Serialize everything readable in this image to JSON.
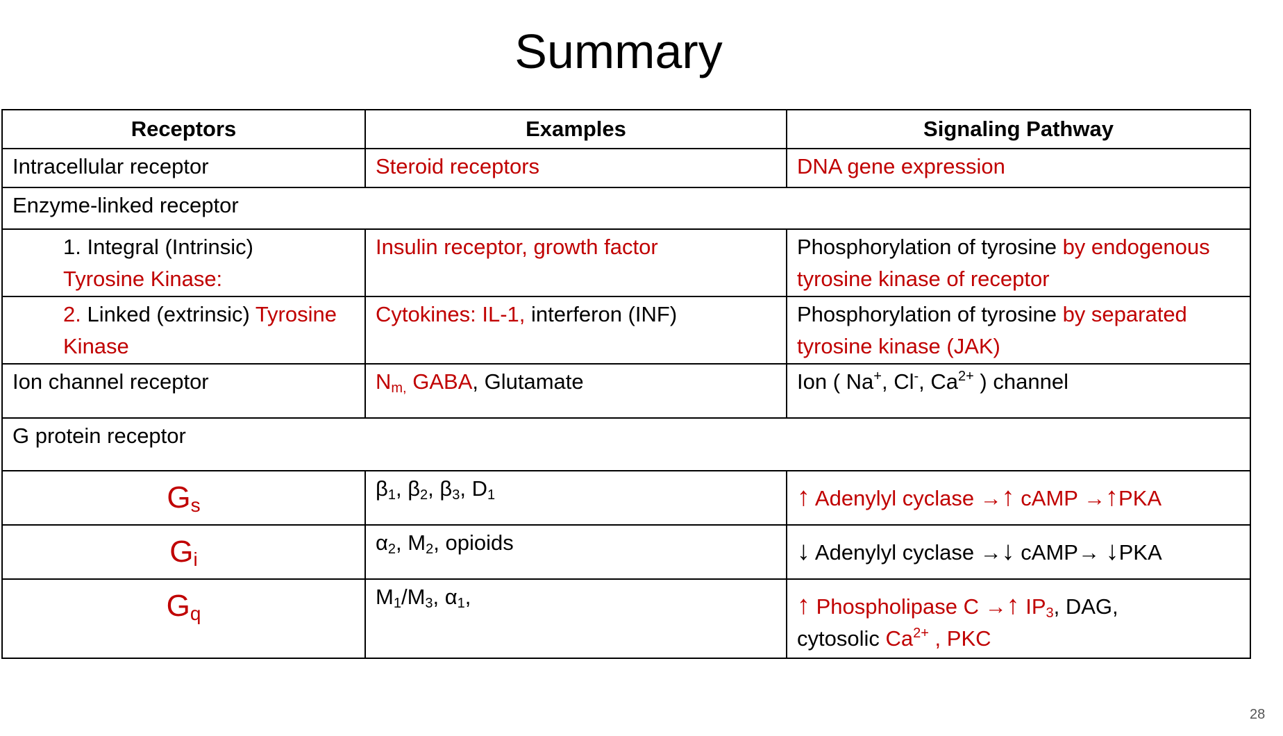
{
  "title": "Summary",
  "page_number": "28",
  "colors": {
    "accent_red": "#c00000",
    "text": "#000000",
    "border": "#000000"
  },
  "headers": {
    "receptors": "Receptors",
    "examples": "Examples",
    "pathway": "Signaling Pathway"
  },
  "rows": {
    "intracellular": {
      "receptor": "Intracellular receptor",
      "examples": "Steroid receptors",
      "pathway": "DNA gene expression"
    },
    "enzyme": {
      "label": "Enzyme-linked receptor"
    },
    "integral": {
      "receptor_a": "1. Integral (Intrinsic)",
      "receptor_b": "Tyrosine Kinase:",
      "examples": "Insulin receptor, growth factor",
      "pathway_a": "Phosphorylation of tyrosine ",
      "pathway_b": "by endogenous tyrosine kinase of receptor"
    },
    "linked": {
      "receptor_num": "2.",
      "receptor_a": " Linked (extrinsic) ",
      "receptor_b": "Tyrosine Kinase",
      "examples_a": "Cytokines: IL-1, ",
      "examples_b": "interferon (INF)",
      "pathway_a": "Phosphorylation of tyrosine ",
      "pathway_b": "by separated tyrosine kinase (JAK)"
    },
    "ion": {
      "receptor": "Ion channel receptor",
      "ex_n": "N",
      "ex_n_sub": "m,",
      "ex_gaba": " GABA",
      "ex_rest": ", Glutamate",
      "p_a": "Ion ( Na",
      "p_sup1": "+",
      "p_b": ", Cl",
      "p_sup2": "-",
      "p_c": ", Ca",
      "p_sup3": "2+",
      "p_d": " ) channel"
    },
    "gprotein": {
      "label": "G protein receptor"
    },
    "gs": {
      "g": "G",
      "g_sub": "s",
      "ex": [
        "β",
        "1",
        ", β",
        "2",
        ", β",
        "3",
        ", D",
        "1"
      ],
      "up": "↑",
      "right": "→",
      "p_a": " Adenylyl cyclase ",
      "p_b": " cAMP ",
      "p_c": "PKA"
    },
    "gi": {
      "g": "G",
      "g_sub": "i",
      "ex": [
        "α",
        "2",
        ", M",
        "2",
        ", opioids"
      ],
      "down": "↓",
      "right": "→",
      "p_a": " Adenylyl cyclase ",
      "p_b": " cAMP",
      "p_c": " ",
      "p_d": "PKA"
    },
    "gq": {
      "g": "G",
      "g_sub": "q",
      "ex": [
        "M",
        "1",
        "/M",
        "3",
        ", α",
        "1",
        ","
      ],
      "up": "↑",
      "right": "→",
      "p_a": " Phospholipase C ",
      "p_b": " IP",
      "p_b_sub": "3",
      "p_c": ", DAG,",
      "p_d": "cytosolic ",
      "p_e": "Ca",
      "p_e_sup": "2+",
      "p_f": " , PKC"
    }
  }
}
